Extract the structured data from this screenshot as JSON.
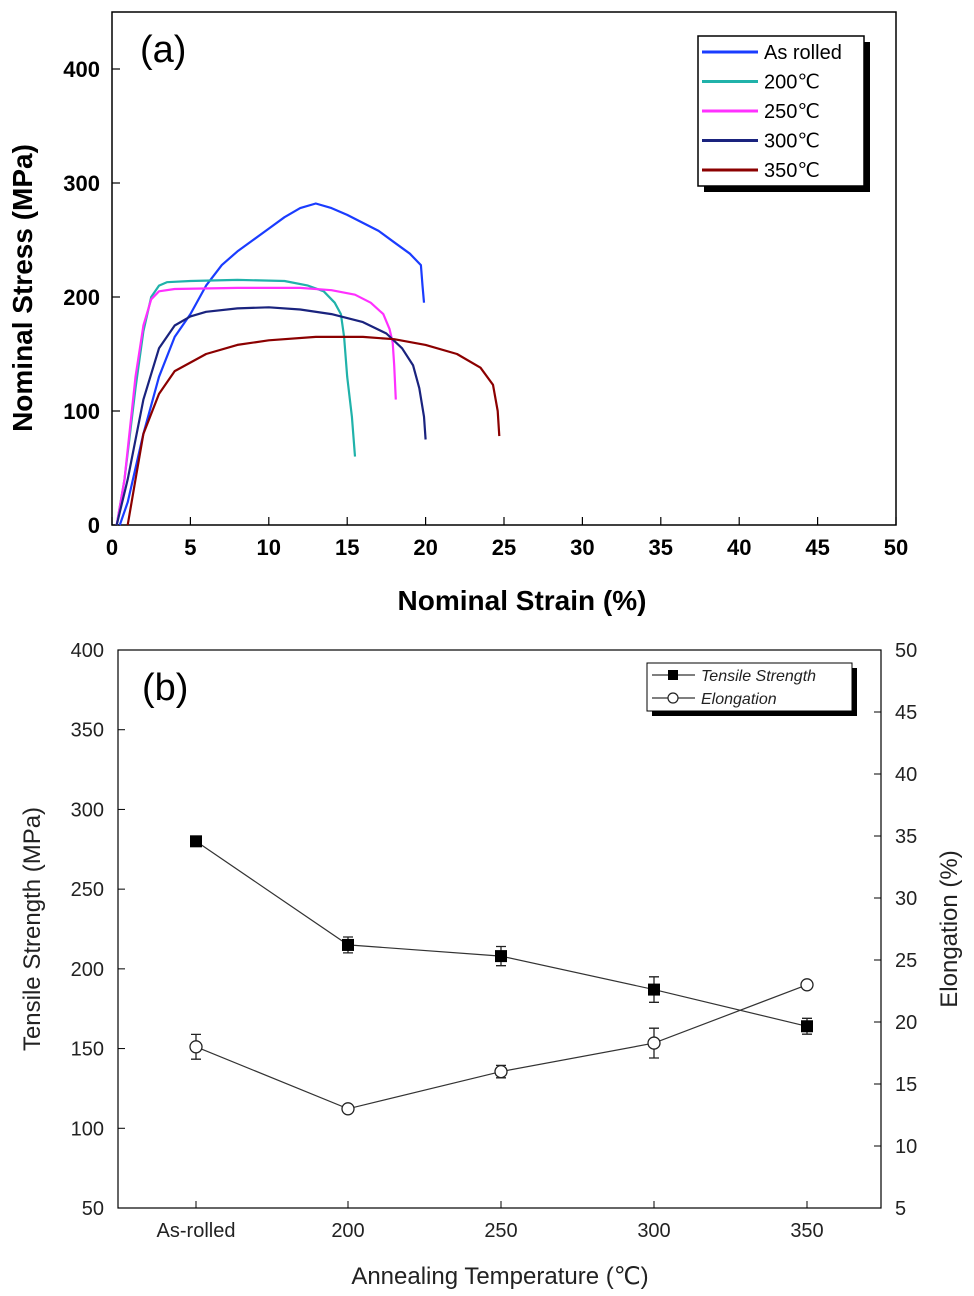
{
  "chart_data": [
    {
      "panel": "(a)",
      "type": "line",
      "xlabel": "Nominal Strain (%)",
      "ylabel": "Nominal Stress (MPa)",
      "xlim": [
        0,
        50
      ],
      "ylim": [
        0,
        450
      ],
      "xticks": [
        "0",
        "5",
        "10",
        "15",
        "20",
        "25",
        "30",
        "35",
        "40",
        "45",
        "50"
      ],
      "yticks": [
        "0",
        "100",
        "200",
        "300",
        "400"
      ],
      "legend_position": "top-right",
      "series": [
        {
          "name": "As rolled",
          "color": "#1a3cff",
          "points": [
            [
              0.5,
              0
            ],
            [
              1,
              20
            ],
            [
              2,
              80
            ],
            [
              3,
              130
            ],
            [
              4,
              165
            ],
            [
              5,
              185
            ],
            [
              6,
              210
            ],
            [
              7,
              228
            ],
            [
              8,
              240
            ],
            [
              9,
              250
            ],
            [
              10,
              260
            ],
            [
              11,
              270
            ],
            [
              12,
              278
            ],
            [
              13,
              282
            ],
            [
              14,
              278
            ],
            [
              15,
              272
            ],
            [
              16,
              265
            ],
            [
              17,
              258
            ],
            [
              18,
              248
            ],
            [
              19,
              238
            ],
            [
              19.7,
              228
            ],
            [
              19.8,
              210
            ],
            [
              19.9,
              195
            ]
          ]
        },
        {
          "name": "200℃",
          "color": "#20b2aa",
          "points": [
            [
              0.3,
              0
            ],
            [
              0.8,
              40
            ],
            [
              1.5,
              120
            ],
            [
              2,
              170
            ],
            [
              2.5,
              200
            ],
            [
              3,
              210
            ],
            [
              3.5,
              213
            ],
            [
              5,
              214
            ],
            [
              8,
              215
            ],
            [
              11,
              214
            ],
            [
              12.5,
              210
            ],
            [
              13.5,
              205
            ],
            [
              14.2,
              195
            ],
            [
              14.6,
              185
            ],
            [
              14.8,
              165
            ],
            [
              15,
              130
            ],
            [
              15.3,
              95
            ],
            [
              15.5,
              60
            ]
          ]
        },
        {
          "name": "250℃",
          "color": "#ff30ff",
          "points": [
            [
              0.3,
              0
            ],
            [
              0.8,
              40
            ],
            [
              1.5,
              130
            ],
            [
              2,
              175
            ],
            [
              2.5,
              198
            ],
            [
              3,
              205
            ],
            [
              4,
              207
            ],
            [
              8,
              208
            ],
            [
              12,
              208
            ],
            [
              14,
              206
            ],
            [
              15.5,
              202
            ],
            [
              16.5,
              195
            ],
            [
              17.3,
              185
            ],
            [
              17.7,
              172
            ],
            [
              17.9,
              160
            ],
            [
              18,
              140
            ],
            [
              18.1,
              110
            ]
          ]
        },
        {
          "name": "300℃",
          "color": "#1a237e",
          "points": [
            [
              0.3,
              0
            ],
            [
              1,
              40
            ],
            [
              2,
              110
            ],
            [
              3,
              155
            ],
            [
              4,
              175
            ],
            [
              5,
              183
            ],
            [
              6,
              187
            ],
            [
              8,
              190
            ],
            [
              10,
              191
            ],
            [
              12,
              189
            ],
            [
              14,
              185
            ],
            [
              16,
              178
            ],
            [
              17.5,
              168
            ],
            [
              18.5,
              155
            ],
            [
              19.2,
              140
            ],
            [
              19.6,
              120
            ],
            [
              19.9,
              95
            ],
            [
              20,
              75
            ]
          ]
        },
        {
          "name": "350℃",
          "color": "#8b0000",
          "points": [
            [
              1,
              0
            ],
            [
              1.5,
              40
            ],
            [
              2,
              80
            ],
            [
              3,
              115
            ],
            [
              4,
              135
            ],
            [
              6,
              150
            ],
            [
              8,
              158
            ],
            [
              10,
              162
            ],
            [
              13,
              165
            ],
            [
              16,
              165
            ],
            [
              18,
              163
            ],
            [
              20,
              158
            ],
            [
              22,
              150
            ],
            [
              23.5,
              138
            ],
            [
              24.3,
              123
            ],
            [
              24.6,
              100
            ],
            [
              24.7,
              78
            ]
          ]
        }
      ]
    },
    {
      "panel": "(b)",
      "type": "line",
      "xlabel": "Annealing Temperature (℃)",
      "ylabel": "Tensile Strength (MPa)",
      "y2label": "Elongation (%)",
      "categories": [
        "As-rolled",
        "200",
        "250",
        "300",
        "350"
      ],
      "ylim": [
        50,
        400
      ],
      "y2lim": [
        5,
        50
      ],
      "yticks": [
        "50",
        "100",
        "150",
        "200",
        "250",
        "300",
        "350",
        "400"
      ],
      "y2ticks": [
        "5",
        "10",
        "15",
        "20",
        "25",
        "30",
        "35",
        "40",
        "45",
        "50"
      ],
      "legend_position": "top-right",
      "series": [
        {
          "name": "Tensile Strength",
          "axis": "left",
          "marker": "filled-square",
          "values": [
            280,
            215,
            208,
            187,
            164
          ],
          "errors": [
            0,
            5,
            6,
            8,
            5
          ]
        },
        {
          "name": "Elongation",
          "axis": "right",
          "marker": "open-circle",
          "values": [
            18,
            13,
            16,
            18.3,
            23
          ],
          "errors": [
            1,
            0,
            0.5,
            1.2,
            0
          ]
        }
      ]
    }
  ]
}
